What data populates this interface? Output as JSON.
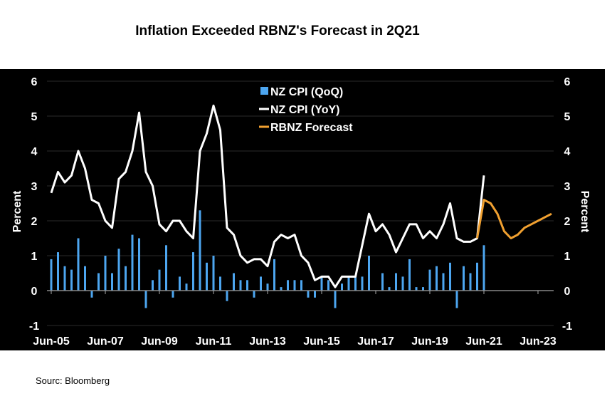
{
  "chart_data": {
    "type": "bar+line",
    "title": "Inflation Exceeded RBNZ's Forecast in 2Q21",
    "ylabel_left": "Percent",
    "ylabel_right": "Percent",
    "ylim": [
      -1,
      6
    ],
    "yticks": [
      -1,
      0,
      1,
      2,
      3,
      4,
      5,
      6
    ],
    "xtick_labels": [
      "Jun-05",
      "Jun-07",
      "Jun-09",
      "Jun-11",
      "Jun-13",
      "Jun-15",
      "Jun-17",
      "Jun-19",
      "Jun-21",
      "Jun-23"
    ],
    "x_start": "Jun-05",
    "frequency": "quarterly",
    "legend_position": "top-center",
    "series": [
      {
        "name": "NZ CPI (QoQ)",
        "kind": "bar",
        "color": "#4da6f0",
        "start": "Jun-05",
        "values": [
          0.9,
          1.1,
          0.7,
          0.6,
          1.5,
          0.7,
          -0.2,
          0.5,
          1.0,
          0.5,
          1.2,
          0.7,
          1.6,
          1.5,
          -0.5,
          0.3,
          0.6,
          1.3,
          -0.2,
          0.4,
          0.2,
          1.1,
          2.3,
          0.8,
          1.0,
          0.4,
          -0.3,
          0.5,
          0.3,
          0.3,
          -0.2,
          0.4,
          0.2,
          0.9,
          0.1,
          0.3,
          0.3,
          0.3,
          -0.2,
          -0.2,
          0.4,
          0.3,
          -0.5,
          0.2,
          0.4,
          0.4,
          0.4,
          1.0,
          0.0,
          0.5,
          0.1,
          0.5,
          0.4,
          0.9,
          0.1,
          0.1,
          0.6,
          0.7,
          0.5,
          0.8,
          -0.5,
          0.7,
          0.5,
          0.8,
          1.3
        ]
      },
      {
        "name": "NZ CPI (YoY)",
        "kind": "line",
        "color": "#ffffff",
        "start": "Jun-05",
        "values": [
          2.8,
          3.4,
          3.1,
          3.3,
          4.0,
          3.5,
          2.6,
          2.5,
          2.0,
          1.8,
          3.2,
          3.4,
          4.0,
          5.1,
          3.4,
          3.0,
          1.9,
          1.7,
          2.0,
          2.0,
          1.7,
          1.5,
          4.0,
          4.5,
          5.3,
          4.6,
          1.8,
          1.6,
          1.0,
          0.8,
          0.9,
          0.9,
          0.7,
          1.4,
          1.6,
          1.5,
          1.6,
          1.0,
          0.8,
          0.3,
          0.4,
          0.4,
          0.1,
          0.4,
          0.4,
          0.4,
          1.3,
          2.2,
          1.7,
          1.9,
          1.6,
          1.1,
          1.5,
          1.9,
          1.9,
          1.5,
          1.7,
          1.5,
          1.9,
          2.5,
          1.5,
          1.4,
          1.4,
          1.5,
          3.3
        ]
      },
      {
        "name": "RBNZ Forecast",
        "kind": "line",
        "color": "#f0a030",
        "start": "Mar-21",
        "values": [
          1.5,
          2.6,
          2.5,
          2.2,
          1.7,
          1.5,
          1.6,
          1.8,
          1.9,
          2.0,
          2.1,
          2.2
        ]
      }
    ]
  },
  "source": "Sourc: Bloomberg"
}
